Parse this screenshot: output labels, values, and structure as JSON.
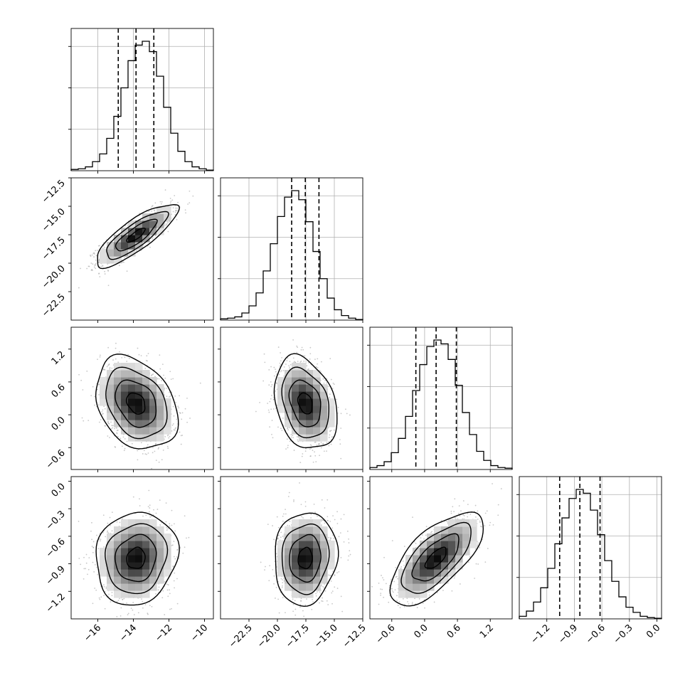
{
  "chart_data": {
    "type": "corner",
    "parameters": [
      {
        "range": [
          -17.5,
          -9.5
        ],
        "ticks": [
          -16,
          -14,
          -12,
          -10
        ],
        "tick_labels": [
          "−16",
          "−14",
          "−12",
          "−10"
        ],
        "mean": -13.85,
        "sd": 1.0,
        "quantiles": [
          -14.85,
          -13.85,
          -12.85
        ]
      },
      {
        "range": [
          -25.0,
          -12.5
        ],
        "ticks": [
          -22.5,
          -20.0,
          -17.5,
          -15.0,
          -12.5
        ],
        "tick_labels": [
          "−22.5",
          "−20.0",
          "−17.5",
          "−15.0",
          "−12.5"
        ],
        "mean": -17.55,
        "sd": 1.2,
        "quantiles": [
          -18.75,
          -17.55,
          -16.35
        ]
      },
      {
        "range": [
          -1.0,
          1.6
        ],
        "ticks": [
          -0.6,
          0.0,
          0.6,
          1.2
        ],
        "tick_labels": [
          "−0.6",
          "0.0",
          "0.6",
          "1.2"
        ],
        "mean": 0.21,
        "sd": 0.37,
        "quantiles": [
          -0.16,
          0.21,
          0.58
        ]
      },
      {
        "range": [
          -1.5,
          0.05
        ],
        "ticks": [
          -1.2,
          -0.9,
          -0.6,
          -0.3,
          0.0
        ],
        "tick_labels": [
          "−1.2",
          "−0.9",
          "−0.6",
          "−0.3",
          "0.0"
        ],
        "mean": -0.84,
        "sd": 0.22,
        "quantiles": [
          -1.06,
          -0.84,
          -0.62
        ]
      }
    ],
    "histograms": [
      [
        0.01,
        0.015,
        0.03,
        0.07,
        0.13,
        0.25,
        0.42,
        0.64,
        0.85,
        0.97,
        1.0,
        0.92,
        0.73,
        0.49,
        0.29,
        0.15,
        0.07,
        0.03,
        0.015,
        0.005
      ],
      [
        0.01,
        0.015,
        0.025,
        0.055,
        0.11,
        0.21,
        0.38,
        0.59,
        0.8,
        0.95,
        1.0,
        0.93,
        0.76,
        0.53,
        0.32,
        0.17,
        0.08,
        0.035,
        0.015,
        0.005
      ],
      [
        0.015,
        0.03,
        0.06,
        0.13,
        0.24,
        0.41,
        0.61,
        0.81,
        0.95,
        1.0,
        0.97,
        0.85,
        0.65,
        0.44,
        0.27,
        0.14,
        0.07,
        0.03,
        0.015,
        0.01
      ],
      [
        0.02,
        0.06,
        0.13,
        0.24,
        0.39,
        0.58,
        0.78,
        0.93,
        1.0,
        0.97,
        0.84,
        0.65,
        0.45,
        0.29,
        0.17,
        0.09,
        0.05,
        0.02,
        0.01,
        0.005
      ]
    ],
    "correlations": [
      {
        "pair": [
          1,
          0
        ],
        "rho": 0.82
      },
      {
        "pair": [
          2,
          0
        ],
        "rho": -0.3
      },
      {
        "pair": [
          2,
          1
        ],
        "rho": -0.28
      },
      {
        "pair": [
          3,
          0
        ],
        "rho": 0.1
      },
      {
        "pair": [
          3,
          1
        ],
        "rho": 0.08
      },
      {
        "pair": [
          3,
          2
        ],
        "rho": 0.68
      }
    ],
    "grid": true
  }
}
